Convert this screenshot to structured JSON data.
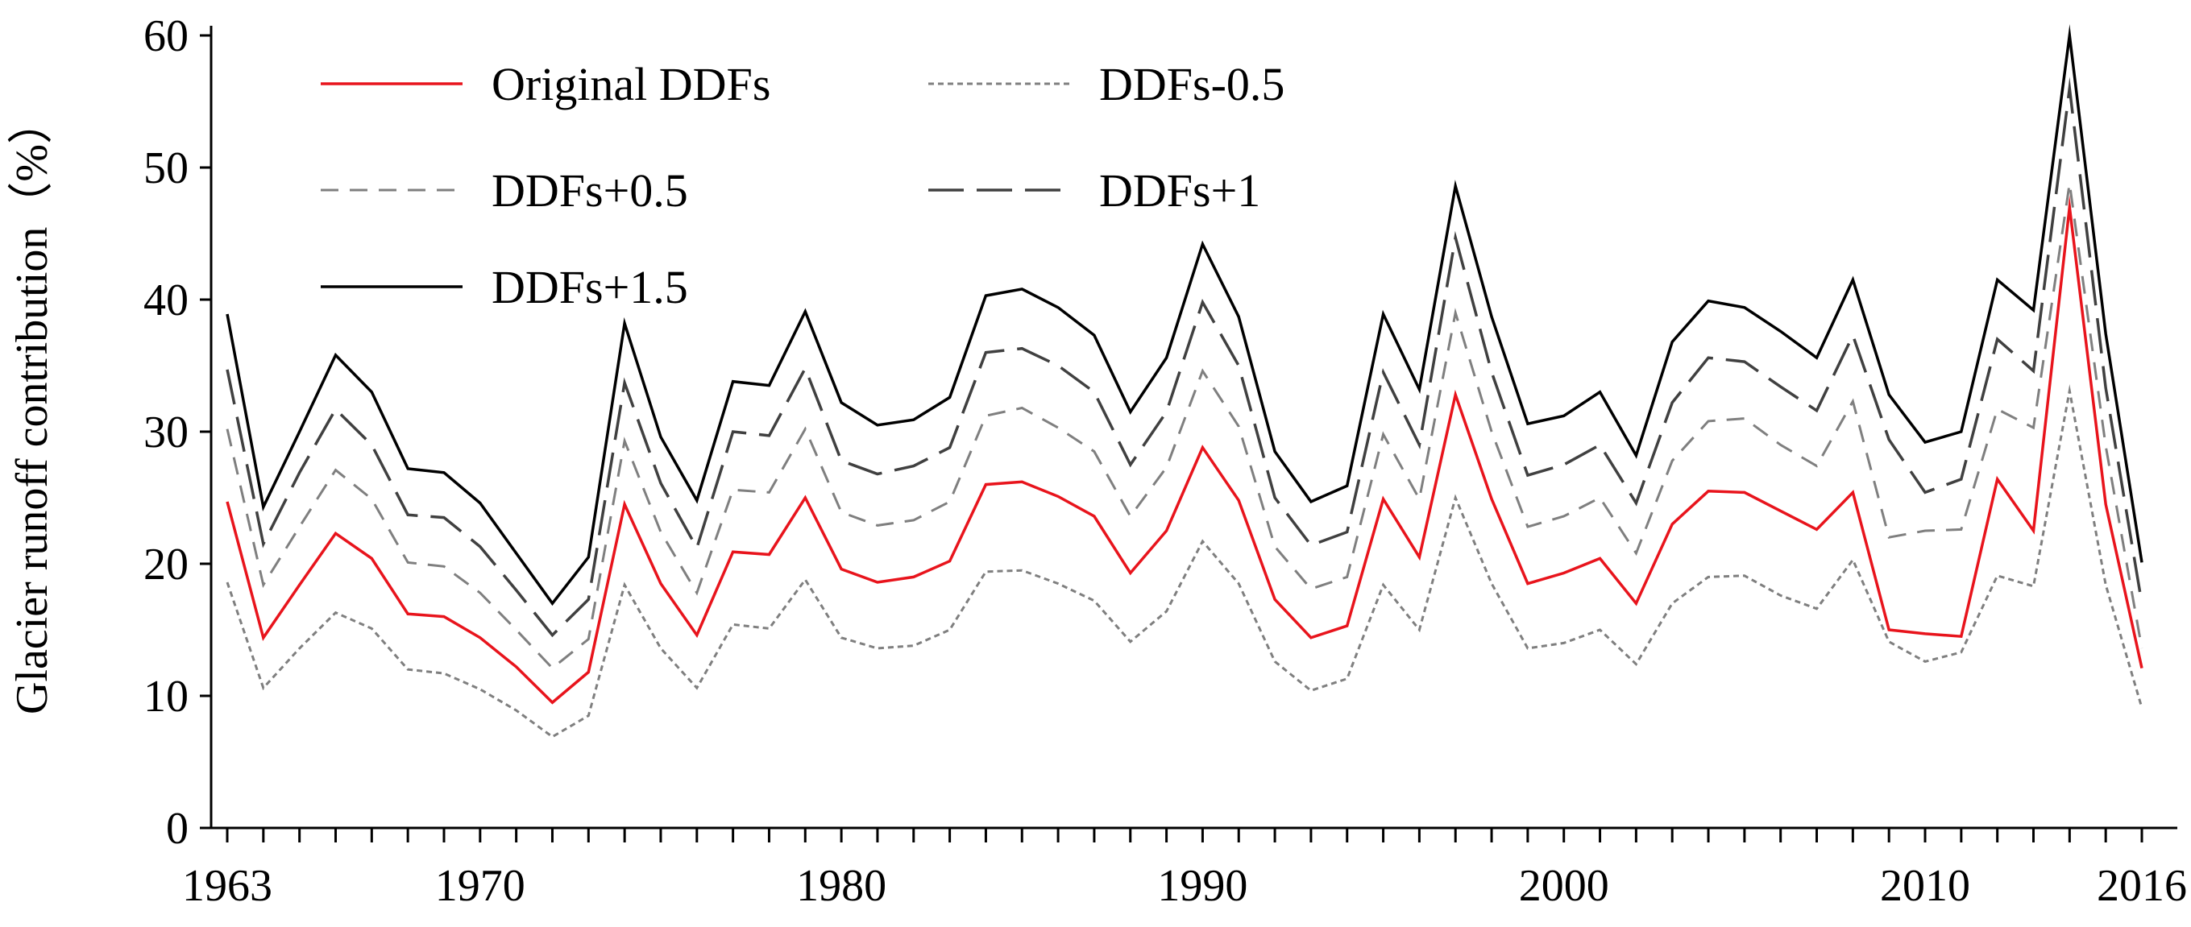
{
  "chart_data": {
    "type": "line",
    "title": "",
    "xlabel": "",
    "ylabel": "Glacier runoff contribution（%）",
    "ylim": [
      0,
      60
    ],
    "yticks": [
      0,
      10,
      20,
      30,
      40,
      50,
      60
    ],
    "xlim": [
      1963,
      2016
    ],
    "xtick_labels": [
      {
        "value": 1963,
        "label": "1963"
      },
      {
        "value": 1970,
        "label": "1970"
      },
      {
        "value": 1980,
        "label": "1980"
      },
      {
        "value": 1990,
        "label": "1990"
      },
      {
        "value": 2000,
        "label": "2000"
      },
      {
        "value": 2010,
        "label": "2010"
      },
      {
        "value": 2016,
        "label": "2016"
      }
    ],
    "grid": false,
    "legend_position": "top-left",
    "x": [
      1963,
      1964,
      1965,
      1966,
      1967,
      1968,
      1969,
      1970,
      1971,
      1972,
      1973,
      1974,
      1975,
      1976,
      1977,
      1978,
      1979,
      1980,
      1981,
      1982,
      1983,
      1984,
      1985,
      1986,
      1987,
      1988,
      1989,
      1990,
      1991,
      1992,
      1993,
      1994,
      1995,
      1996,
      1997,
      1998,
      1999,
      2000,
      2001,
      2002,
      2003,
      2004,
      2005,
      2006,
      2007,
      2008,
      2009,
      2010,
      2011,
      2012,
      2013,
      2014,
      2015,
      2016
    ],
    "series": [
      {
        "name": "Original DDFs",
        "color": "#e8141c",
        "style": "solid",
        "width": 3.5,
        "values": [
          24.7,
          14.4,
          18.4,
          22.3,
          20.4,
          16.2,
          16.0,
          14.4,
          12.2,
          9.5,
          11.8,
          24.5,
          18.5,
          14.6,
          20.9,
          20.7,
          25.0,
          19.6,
          18.6,
          19.0,
          20.2,
          26.0,
          26.2,
          25.1,
          23.6,
          19.3,
          22.5,
          28.8,
          24.8,
          17.3,
          14.4,
          15.3,
          24.9,
          20.5,
          32.8,
          24.9,
          18.5,
          19.3,
          20.4,
          17.0,
          23.0,
          25.5,
          25.4,
          24.0,
          22.6,
          25.4,
          15.0,
          14.7,
          14.5,
          26.4,
          22.5,
          47.0,
          24.5,
          12.1
        ]
      },
      {
        "name": "DDFs-0.5",
        "color": "#7f7f7f",
        "style": "dotted",
        "width": 3,
        "values": [
          18.6,
          10.6,
          13.6,
          16.3,
          15.1,
          12.0,
          11.7,
          10.5,
          8.9,
          6.9,
          8.5,
          18.4,
          13.6,
          10.6,
          15.4,
          15.1,
          18.8,
          14.4,
          13.6,
          13.8,
          15.0,
          19.4,
          19.5,
          18.5,
          17.2,
          14.1,
          16.4,
          21.7,
          18.5,
          12.6,
          10.4,
          11.3,
          18.4,
          15.0,
          25.0,
          18.5,
          13.6,
          14.0,
          15.0,
          12.4,
          17.0,
          19.0,
          19.1,
          17.6,
          16.6,
          20.3,
          14.1,
          12.6,
          13.3,
          19.1,
          18.3,
          33.1,
          18.4,
          9.1
        ]
      },
      {
        "name": "DDFs+0.5",
        "color": "#7f7f7f",
        "style": "dashed-short",
        "width": 3,
        "values": [
          30.2,
          18.4,
          22.8,
          27.1,
          24.9,
          20.1,
          19.8,
          17.8,
          15.0,
          12.1,
          14.3,
          29.3,
          22.4,
          17.8,
          25.6,
          25.4,
          30.2,
          23.9,
          22.9,
          23.3,
          24.7,
          31.2,
          31.8,
          30.3,
          28.5,
          23.6,
          27.3,
          34.6,
          30.4,
          21.3,
          18.1,
          19.0,
          29.8,
          24.9,
          39.0,
          30.0,
          22.8,
          23.6,
          25.0,
          20.8,
          27.8,
          30.8,
          31.0,
          29.0,
          27.4,
          32.3,
          22.0,
          22.5,
          22.6,
          31.7,
          30.3,
          48.8,
          28.9,
          13.6
        ]
      },
      {
        "name": "DDFs+1",
        "color": "#404040",
        "style": "dashed-long",
        "width": 3.5,
        "values": [
          34.7,
          21.5,
          26.9,
          31.7,
          29.0,
          23.7,
          23.5,
          21.3,
          18.0,
          14.6,
          17.3,
          33.7,
          26.1,
          21.2,
          30.0,
          29.7,
          34.8,
          27.8,
          26.8,
          27.4,
          28.8,
          36.0,
          36.3,
          35.0,
          33.0,
          27.5,
          31.5,
          39.8,
          35.0,
          25.0,
          21.4,
          22.4,
          34.5,
          29.0,
          44.7,
          34.5,
          26.7,
          27.5,
          29.0,
          24.6,
          32.2,
          35.6,
          35.3,
          33.4,
          31.6,
          37.3,
          29.4,
          25.4,
          26.4,
          37.0,
          34.6,
          56.0,
          33.3,
          17.0
        ]
      },
      {
        "name": "DDFs+1.5",
        "color": "#000000",
        "style": "solid",
        "width": 3.5,
        "values": [
          38.9,
          24.3,
          30.0,
          35.8,
          33.0,
          27.2,
          26.9,
          24.6,
          20.8,
          17.0,
          20.5,
          38.2,
          29.6,
          24.8,
          33.8,
          33.5,
          39.1,
          32.2,
          30.5,
          30.9,
          32.6,
          40.3,
          40.8,
          39.4,
          37.3,
          31.5,
          35.6,
          44.2,
          38.7,
          28.5,
          24.7,
          25.9,
          38.9,
          33.2,
          48.6,
          38.7,
          30.6,
          31.2,
          33.0,
          28.2,
          36.8,
          39.9,
          39.4,
          37.6,
          35.6,
          41.5,
          32.8,
          29.2,
          30.0,
          41.5,
          39.2,
          60.0,
          37.4,
          20.1
        ]
      }
    ]
  }
}
